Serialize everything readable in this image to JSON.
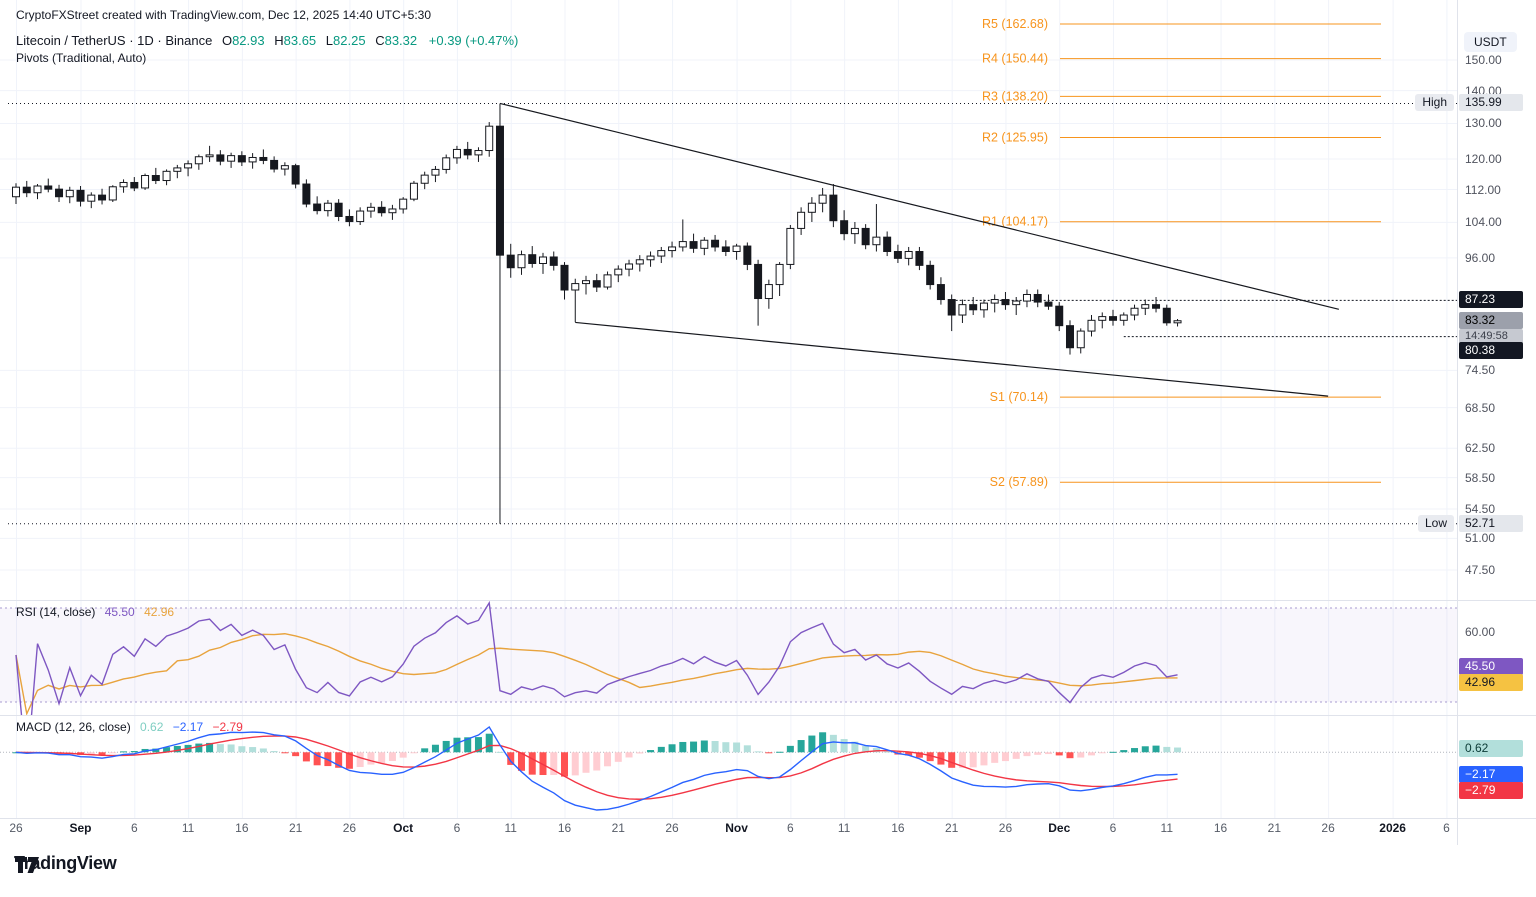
{
  "header": {
    "attribution": "CryptoFXStreet created with TradingView.com, Dec 12, 2025 14:40 UTC+5:30"
  },
  "legend": {
    "title": "Litecoin / TetherUS · 1D · Binance",
    "o_label": "O",
    "o": "82.93",
    "h_label": "H",
    "h": "83.65",
    "l_label": "L",
    "l": "82.25",
    "c_label": "C",
    "c": "83.32",
    "change": "+0.39 (+0.47%)",
    "indicator": "Pivots (Traditional, Auto)"
  },
  "rsi_panel": {
    "title": "RSI (14, close)",
    "value": "45.50",
    "ma_value": "42.96",
    "tick": "60.00",
    "values": {
      "last": 45.5,
      "ma": 42.96,
      "upper": 70,
      "lower": 30,
      "tick": 60
    }
  },
  "macd_panel": {
    "title": "MACD (12, 26, close)",
    "hist": "0.62",
    "macd": "−2.17",
    "signal": "−2.79",
    "zero": "0.00",
    "values": {
      "hist": 0.62,
      "macd": -2.17,
      "signal": -2.79
    }
  },
  "price_scale": {
    "currency": "USDT",
    "high_label": "High",
    "low_label": "Low",
    "high_text": "135.99",
    "low_text": "52.71",
    "line1_text": "87.23",
    "line2_text": "80.38",
    "last_text": "83.32",
    "countdown": "14:49:58",
    "values": {
      "high": 135.99,
      "low": 52.71,
      "line1": 87.23,
      "line2": 80.38,
      "last": 83.32
    },
    "ticks": [
      {
        "label": "150.00",
        "value": 150
      },
      {
        "label": "140.00",
        "value": 140
      },
      {
        "label": "130.00",
        "value": 130
      },
      {
        "label": "120.00",
        "value": 120
      },
      {
        "label": "112.00",
        "value": 112
      },
      {
        "label": "104.00",
        "value": 104
      },
      {
        "label": "96.00",
        "value": 96
      },
      {
        "label": "74.50",
        "value": 74.5
      },
      {
        "label": "68.50",
        "value": 68.5
      },
      {
        "label": "62.50",
        "value": 62.5
      },
      {
        "label": "58.50",
        "value": 58.5
      },
      {
        "label": "54.50",
        "value": 54.5
      },
      {
        "label": "51.00",
        "value": 51
      },
      {
        "label": "47.50",
        "value": 47.5
      }
    ]
  },
  "footer": {
    "logo_text": "TradingView"
  },
  "chart_data": {
    "type": "candlestick",
    "title": "Litecoin / TetherUS",
    "timeframe": "1D",
    "exchange": "Binance",
    "quote_currency": "USDT",
    "log_scale": true,
    "start_date": "2025-08-26",
    "end_date": "2025-12-12",
    "visible_high": 135.99,
    "visible_low": 52.71,
    "last_ohlc": {
      "open": 82.93,
      "high": 83.65,
      "low": 82.25,
      "close": 83.32,
      "change": 0.39,
      "change_pct": 0.47
    },
    "colors": {
      "up": "#FFFFFF",
      "down": "#16181E",
      "wick": "#16181E",
      "pivot": "#F7941D",
      "rsi": "#7E57C2",
      "rsi_ma": "#E8A33D",
      "macd": "#2962FF",
      "signal": "#F23645",
      "hist_grow": "#26A69A",
      "hist_fall": "#B2DFDB",
      "hist_neg": "#FF5252",
      "hist_neg_fall": "#FFCDD2"
    },
    "pivot_levels": [
      {
        "label": "R5 (162.68)",
        "value": 162.68
      },
      {
        "label": "R4 (150.44)",
        "value": 150.44
      },
      {
        "label": "R3 (138.20)",
        "value": 138.2
      },
      {
        "label": "R2 (125.95)",
        "value": 125.95
      },
      {
        "label": "R1 (104.17)",
        "value": 104.17
      },
      {
        "label": "S1 (70.14)",
        "value": 70.14
      },
      {
        "label": "S2 (57.89)",
        "value": 57.89
      }
    ],
    "price_lines": [
      {
        "value": 87.23,
        "start_index": 87
      },
      {
        "value": 80.38,
        "start_index": 103
      }
    ],
    "trendlines": [
      {
        "from": {
          "index": 45,
          "price": 136.0
        },
        "to": {
          "index": 123,
          "price": 85.5
        }
      },
      {
        "from": {
          "index": 52,
          "price": 83.0
        },
        "to": {
          "index": 122,
          "price": 70.3
        }
      }
    ],
    "indicators": {
      "rsi": {
        "length": 14,
        "source": "close",
        "ma_length": 14,
        "last": 45.5,
        "ma_last": 42.96,
        "upper_band": 70,
        "lower_band": 30
      },
      "macd": {
        "fast": 12,
        "slow": 26,
        "signal": 9,
        "source": "close",
        "hist_last": 0.62,
        "macd_last": -2.17,
        "signal_last": -2.79
      }
    },
    "time_ticks": [
      {
        "label": "26",
        "i": 0
      },
      {
        "label": "Sep",
        "i": 6,
        "major": true
      },
      {
        "label": "6",
        "i": 11
      },
      {
        "label": "11",
        "i": 16
      },
      {
        "label": "16",
        "i": 21
      },
      {
        "label": "21",
        "i": 26
      },
      {
        "label": "26",
        "i": 31
      },
      {
        "label": "Oct",
        "i": 36,
        "major": true
      },
      {
        "label": "6",
        "i": 41
      },
      {
        "label": "11",
        "i": 46
      },
      {
        "label": "16",
        "i": 51
      },
      {
        "label": "21",
        "i": 56
      },
      {
        "label": "26",
        "i": 61
      },
      {
        "label": "Nov",
        "i": 67,
        "major": true
      },
      {
        "label": "6",
        "i": 72
      },
      {
        "label": "11",
        "i": 77
      },
      {
        "label": "16",
        "i": 82
      },
      {
        "label": "21",
        "i": 87
      },
      {
        "label": "26",
        "i": 92
      },
      {
        "label": "Dec",
        "i": 97,
        "major": true
      },
      {
        "label": "6",
        "i": 102
      },
      {
        "label": "11",
        "i": 107
      },
      {
        "label": "16",
        "i": 112
      },
      {
        "label": "21",
        "i": 117
      },
      {
        "label": "26",
        "i": 122
      },
      {
        "label": "2026",
        "i": 128,
        "major": true
      },
      {
        "label": "6",
        "i": 133
      }
    ],
    "ohlc": [
      [
        110.2,
        113.6,
        108.4,
        112.6
      ],
      [
        112.6,
        114.2,
        110.1,
        111.2
      ],
      [
        111.2,
        113.4,
        109.6,
        112.9
      ],
      [
        112.9,
        114.8,
        111.3,
        112.1
      ],
      [
        112.1,
        113.2,
        108.9,
        110.2
      ],
      [
        110.2,
        112.7,
        108.6,
        111.8
      ],
      [
        111.8,
        112.9,
        107.8,
        109.1
      ],
      [
        109.1,
        111.3,
        107.4,
        110.6
      ],
      [
        110.6,
        112.2,
        108.3,
        109.4
      ],
      [
        109.4,
        113.1,
        108.9,
        112.7
      ],
      [
        112.7,
        114.6,
        111.2,
        113.8
      ],
      [
        113.8,
        115.2,
        111.6,
        112.4
      ],
      [
        112.4,
        116.1,
        111.9,
        115.6
      ],
      [
        115.6,
        117.6,
        113.4,
        114.3
      ],
      [
        114.3,
        117.2,
        113.1,
        116.7
      ],
      [
        116.7,
        118.4,
        114.9,
        117.6
      ],
      [
        117.6,
        119.6,
        115.4,
        118.7
      ],
      [
        118.7,
        121.2,
        117.1,
        120.6
      ],
      [
        120.6,
        123.6,
        119.2,
        121.1
      ],
      [
        121.1,
        122.4,
        118.3,
        119.4
      ],
      [
        119.4,
        121.7,
        117.6,
        120.9
      ],
      [
        120.9,
        122.1,
        118.1,
        119.2
      ],
      [
        119.2,
        121.6,
        117.4,
        120.4
      ],
      [
        120.4,
        122.6,
        118.6,
        119.6
      ],
      [
        119.6,
        120.7,
        116.4,
        117.3
      ],
      [
        117.3,
        119.1,
        115.6,
        118.2
      ],
      [
        118.2,
        118.7,
        112.3,
        113.4
      ],
      [
        113.4,
        114.6,
        107.6,
        108.4
      ],
      [
        108.4,
        110.3,
        105.9,
        106.8
      ],
      [
        106.8,
        109.4,
        105.4,
        108.6
      ],
      [
        108.6,
        109.6,
        104.3,
        105.4
      ],
      [
        105.4,
        107.1,
        103.1,
        104.2
      ],
      [
        104.2,
        107.6,
        103.4,
        106.7
      ],
      [
        106.7,
        108.7,
        105.1,
        107.6
      ],
      [
        107.6,
        109.1,
        105.4,
        106.3
      ],
      [
        106.3,
        108.2,
        104.6,
        107.2
      ],
      [
        107.2,
        110.1,
        106.1,
        109.6
      ],
      [
        109.6,
        114.2,
        109.1,
        113.6
      ],
      [
        113.6,
        116.6,
        112.1,
        115.7
      ],
      [
        115.7,
        118.1,
        113.9,
        117.2
      ],
      [
        117.2,
        121.2,
        116.1,
        120.3
      ],
      [
        120.3,
        123.6,
        118.7,
        122.6
      ],
      [
        122.6,
        124.7,
        119.9,
        121.1
      ],
      [
        121.1,
        123.2,
        119.2,
        122.3
      ],
      [
        122.3,
        130.4,
        120.6,
        129.2
      ],
      [
        129.2,
        135.99,
        52.71,
        96.6
      ],
      [
        96.6,
        99.1,
        91.8,
        93.9
      ],
      [
        93.9,
        97.6,
        92.4,
        96.7
      ],
      [
        96.7,
        98.6,
        93.9,
        94.8
      ],
      [
        94.8,
        97.1,
        92.6,
        96.2
      ],
      [
        96.2,
        97.4,
        93.3,
        94.4
      ],
      [
        94.4,
        95.1,
        87.4,
        89.3
      ],
      [
        89.3,
        91.6,
        83.05,
        90.6
      ],
      [
        90.6,
        92.2,
        88.4,
        91.2
      ],
      [
        91.2,
        92.6,
        88.9,
        89.9
      ],
      [
        89.9,
        93.1,
        89.4,
        92.4
      ],
      [
        92.4,
        94.4,
        90.9,
        93.6
      ],
      [
        93.6,
        95.6,
        92.1,
        94.7
      ],
      [
        94.7,
        96.6,
        93.1,
        95.6
      ],
      [
        95.6,
        97.4,
        94.1,
        96.4
      ],
      [
        96.4,
        98.4,
        94.9,
        97.6
      ],
      [
        97.6,
        99.6,
        96.1,
        98.4
      ],
      [
        98.4,
        104.7,
        97.4,
        99.6
      ],
      [
        99.6,
        101.4,
        97.1,
        98.1
      ],
      [
        98.1,
        100.6,
        96.6,
        99.9
      ],
      [
        99.9,
        101.1,
        97.4,
        98.4
      ],
      [
        98.4,
        99.9,
        96.4,
        97.4
      ],
      [
        97.4,
        99.1,
        95.6,
        98.6
      ],
      [
        98.6,
        99.4,
        93.4,
        94.6
      ],
      [
        94.6,
        95.6,
        82.4,
        87.6
      ],
      [
        87.6,
        91.4,
        85.6,
        90.4
      ],
      [
        90.4,
        95.1,
        88.1,
        94.6
      ],
      [
        94.6,
        103.4,
        93.6,
        102.6
      ],
      [
        102.6,
        107.6,
        101.1,
        106.4
      ],
      [
        106.4,
        110.1,
        104.1,
        108.6
      ],
      [
        108.6,
        112.4,
        106.4,
        110.6
      ],
      [
        110.6,
        113.4,
        102.9,
        104.4
      ],
      [
        104.4,
        106.9,
        99.9,
        101.4
      ],
      [
        101.4,
        104.1,
        99.1,
        102.6
      ],
      [
        102.6,
        103.6,
        97.9,
        98.9
      ],
      [
        98.9,
        108.4,
        97.4,
        100.6
      ],
      [
        100.6,
        101.9,
        96.4,
        97.4
      ],
      [
        97.4,
        98.9,
        94.9,
        95.9
      ],
      [
        95.9,
        98.4,
        94.4,
        97.4
      ],
      [
        97.4,
        98.4,
        93.4,
        94.4
      ],
      [
        94.4,
        95.4,
        89.4,
        90.4
      ],
      [
        90.4,
        91.9,
        86.4,
        87.4
      ],
      [
        87.4,
        88.4,
        81.4,
        84.4
      ],
      [
        84.4,
        87.4,
        82.9,
        86.4
      ],
      [
        86.4,
        87.9,
        84.4,
        85.4
      ],
      [
        85.4,
        87.4,
        83.9,
        86.7
      ],
      [
        86.7,
        88.4,
        84.9,
        87.4
      ],
      [
        87.4,
        88.9,
        85.4,
        86.4
      ],
      [
        86.4,
        87.9,
        84.4,
        87.1
      ],
      [
        87.1,
        89.4,
        85.9,
        88.4
      ],
      [
        88.4,
        89.4,
        85.9,
        86.9
      ],
      [
        86.9,
        88.4,
        85.4,
        86.1
      ],
      [
        86.1,
        86.9,
        81.4,
        82.4
      ],
      [
        82.4,
        83.4,
        77.2,
        78.4
      ],
      [
        78.4,
        81.9,
        77.4,
        81.4
      ],
      [
        81.4,
        84.4,
        80.4,
        83.4
      ],
      [
        83.4,
        84.9,
        81.9,
        84.1
      ],
      [
        84.1,
        85.4,
        82.4,
        83.4
      ],
      [
        83.4,
        84.9,
        82.4,
        84.4
      ],
      [
        84.4,
        86.4,
        83.4,
        85.7
      ],
      [
        85.7,
        87.4,
        84.4,
        86.4
      ],
      [
        86.4,
        87.9,
        84.9,
        85.7
      ],
      [
        85.7,
        86.4,
        82.4,
        82.93
      ],
      [
        82.93,
        83.65,
        82.25,
        83.32
      ]
    ]
  }
}
